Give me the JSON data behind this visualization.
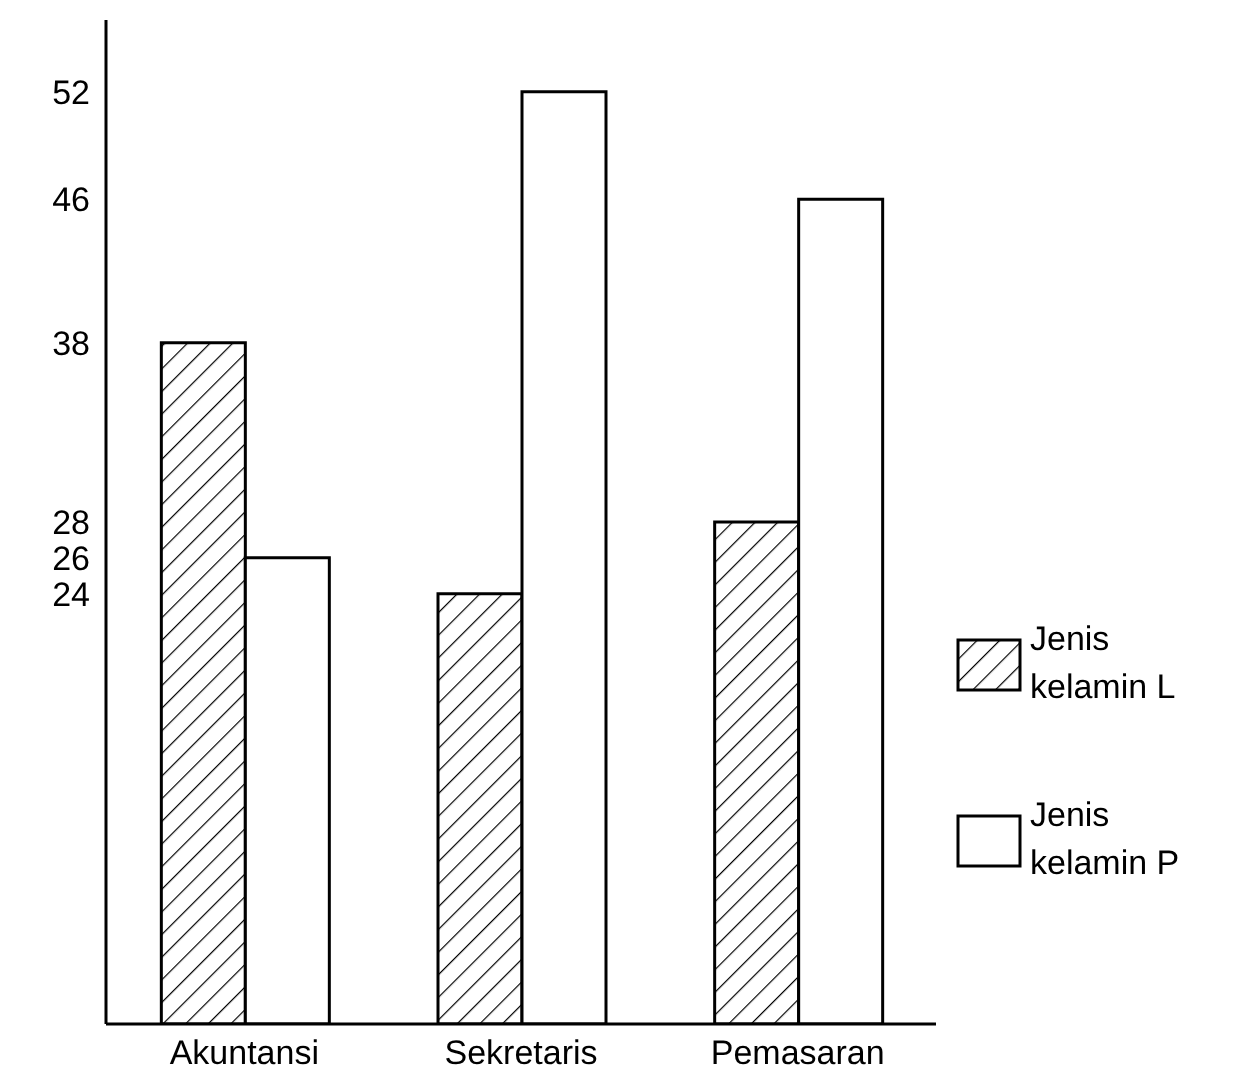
{
  "chart_data": {
    "type": "bar",
    "categories": [
      "Akuntansi",
      "Sekretaris",
      "Pemasaran"
    ],
    "series": [
      {
        "name": "Jenis kelamin L",
        "color": "#000000",
        "values": [
          38,
          24,
          28
        ]
      },
      {
        "name": "Jenis kelamin P",
        "color": "#ffffff",
        "values": [
          26,
          52,
          46
        ]
      }
    ],
    "ylim": [
      0,
      56
    ],
    "yticks": [
      24,
      26,
      28,
      38,
      46,
      52
    ],
    "grid": false,
    "legend": "right"
  }
}
